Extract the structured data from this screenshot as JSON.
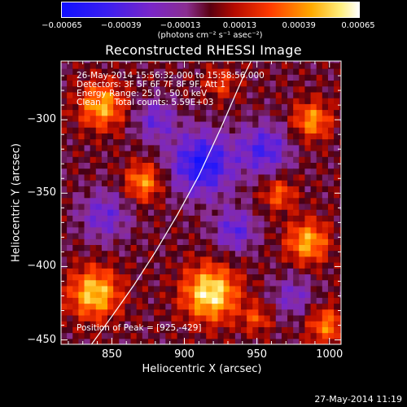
{
  "colorbar": {
    "tick_labels": [
      "-0.00065",
      "-0.00039",
      "-0.00013",
      "0.00013",
      "0.00039",
      "0.00065"
    ],
    "units": "(photons cm⁻² s⁻¹ asec⁻²)",
    "range": [
      -0.00065,
      0.00065
    ]
  },
  "plot": {
    "title": "Reconstructed RHESSI Image",
    "info": {
      "time_range": "26-May-2014 15:56:32.000 to 15:58:56.000",
      "detectors": "Detectors: 3F 5F 6F 7F 8F 9F, Att 1",
      "energy": "Energy Range: 25.0 - 50.0 keV",
      "clean": "Clean     Total counts: 5.59E+03"
    },
    "peak_label": "Position of Peak = [925,-429]",
    "xlabel": "Heliocentric X (arcsec)",
    "ylabel": "Heliocentric Y (arcsec)",
    "x_ticks": [
      "850",
      "900",
      "950",
      "1000"
    ],
    "y_ticks": [
      "-300",
      "-350",
      "-400",
      "-450"
    ]
  },
  "timestamp": "27-May-2014 11:19",
  "chart_data": {
    "type": "heatmap",
    "title": "Reconstructed RHESSI Image",
    "xlabel": "Heliocentric X (arcsec)",
    "ylabel": "Heliocentric Y (arcsec)",
    "xlim": [
      815,
      1008
    ],
    "ylim": [
      -453,
      -260
    ],
    "grid": false,
    "colormap": "blue-purple-red-yellow-white",
    "value_range": [
      -0.00065,
      0.00065
    ],
    "limb_curve": {
      "x": [
        836,
        850,
        865,
        880,
        895,
        910,
        925,
        940,
        946
      ],
      "y": [
        -453,
        -434,
        -413,
        -390,
        -365,
        -338,
        -306,
        -272,
        -260
      ]
    },
    "peak": {
      "x": 925,
      "y": -429
    },
    "sources": [
      {
        "x": 918,
        "y": -418,
        "amplitude": 0.0006,
        "sigma": 13
      },
      {
        "x": 838,
        "y": -418,
        "amplitude": 0.00052,
        "sigma": 12
      },
      {
        "x": 843,
        "y": -290,
        "amplitude": 0.00045,
        "sigma": 11
      },
      {
        "x": 872,
        "y": -342,
        "amplitude": 0.0004,
        "sigma": 9
      },
      {
        "x": 985,
        "y": -383,
        "amplitude": 0.00045,
        "sigma": 10
      },
      {
        "x": 988,
        "y": -300,
        "amplitude": 0.0004,
        "sigma": 9
      },
      {
        "x": 998,
        "y": -440,
        "amplitude": 0.00035,
        "sigma": 9
      },
      {
        "x": 965,
        "y": -350,
        "amplitude": 0.0003,
        "sigma": 8
      },
      {
        "x": 950,
        "y": -435,
        "amplitude": 0.00025,
        "sigma": 7
      },
      {
        "x": 925,
        "y": -275,
        "amplitude": 0.00022,
        "sigma": 8
      },
      {
        "x": 912,
        "y": -330,
        "amplitude": -0.00055,
        "sigma": 15
      },
      {
        "x": 955,
        "y": -320,
        "amplitude": -0.0004,
        "sigma": 12
      },
      {
        "x": 880,
        "y": -300,
        "amplitude": -0.0003,
        "sigma": 10
      },
      {
        "x": 845,
        "y": -365,
        "amplitude": -0.0003,
        "sigma": 12
      },
      {
        "x": 935,
        "y": -375,
        "amplitude": -0.00035,
        "sigma": 10
      },
      {
        "x": 975,
        "y": -420,
        "amplitude": -0.00025,
        "sigma": 10
      }
    ]
  }
}
